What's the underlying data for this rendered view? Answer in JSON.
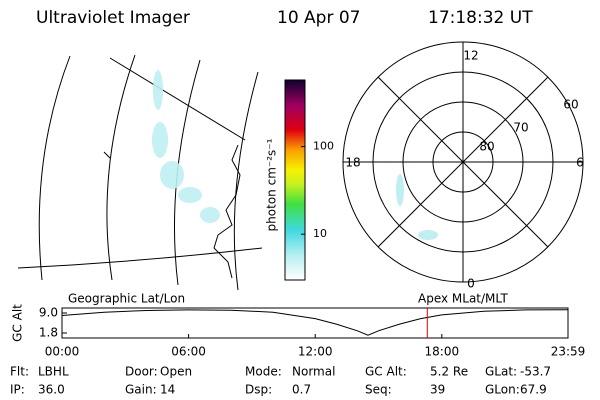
{
  "header": {
    "instrument": "Ultraviolet Imager",
    "date": "10 Apr 07",
    "time": "17:18:32 UT"
  },
  "geo_map": {
    "label": "Geographic Lat/Lon"
  },
  "colorbar": {
    "unit": "photon cm⁻²s⁻¹",
    "log": true,
    "clim": [
      3,
      575
    ],
    "ticks": [
      10,
      100
    ]
  },
  "polar": {
    "label": "Apex MLat/MLT",
    "mlt_labels": [
      "12",
      "18",
      "6",
      "0"
    ],
    "lat_labels": [
      "60",
      "70",
      "80"
    ]
  },
  "altitude": {
    "ylabel": "GC Alt",
    "ylim": [
      0,
      10.8
    ],
    "yticks": [
      {
        "value": 9,
        "label": "9.0"
      },
      1.8
    ],
    "xlim": [
      0,
      23.98
    ],
    "xticks": [
      {
        "value": 0,
        "label": "00:00"
      },
      {
        "value": 6,
        "label": "06:00"
      },
      {
        "value": 12,
        "label": "12:00"
      },
      {
        "value": 18,
        "label": "18:00"
      },
      {
        "value": 23.98,
        "label": "23:59"
      }
    ],
    "hours": [
      0,
      2,
      4,
      6,
      8,
      10,
      12,
      13,
      14,
      14.5,
      15,
      16,
      17,
      18,
      20,
      22,
      24
    ],
    "values": [
      8.1,
      9.3,
      9.9,
      10.1,
      10.0,
      9.3,
      7.0,
      5.0,
      2.6,
      1.0,
      2.6,
      5.0,
      7.0,
      8.3,
      9.6,
      10.1,
      10.2
    ],
    "marker_hour": 17.31,
    "marker_color": "#d00000"
  },
  "info": [
    [
      {
        "label": "Flt:",
        "value": "LBHL"
      },
      {
        "label": "Door:",
        "value": "Open"
      },
      {
        "label": "Mode:",
        "value": "Normal"
      },
      {
        "label": "GC Alt:",
        "value": "5.2 Re"
      },
      {
        "label": "GLat:",
        "value": "-53.7"
      }
    ],
    [
      {
        "label": "IP:",
        "value": "36.0"
      },
      {
        "label": "Gain:",
        "value": "14"
      },
      {
        "label": "Dsp:",
        "value": "0.7"
      },
      {
        "label": "Seq:",
        "value": "39"
      },
      {
        "label": "GLon:",
        "value": "67.9"
      }
    ]
  ]
}
